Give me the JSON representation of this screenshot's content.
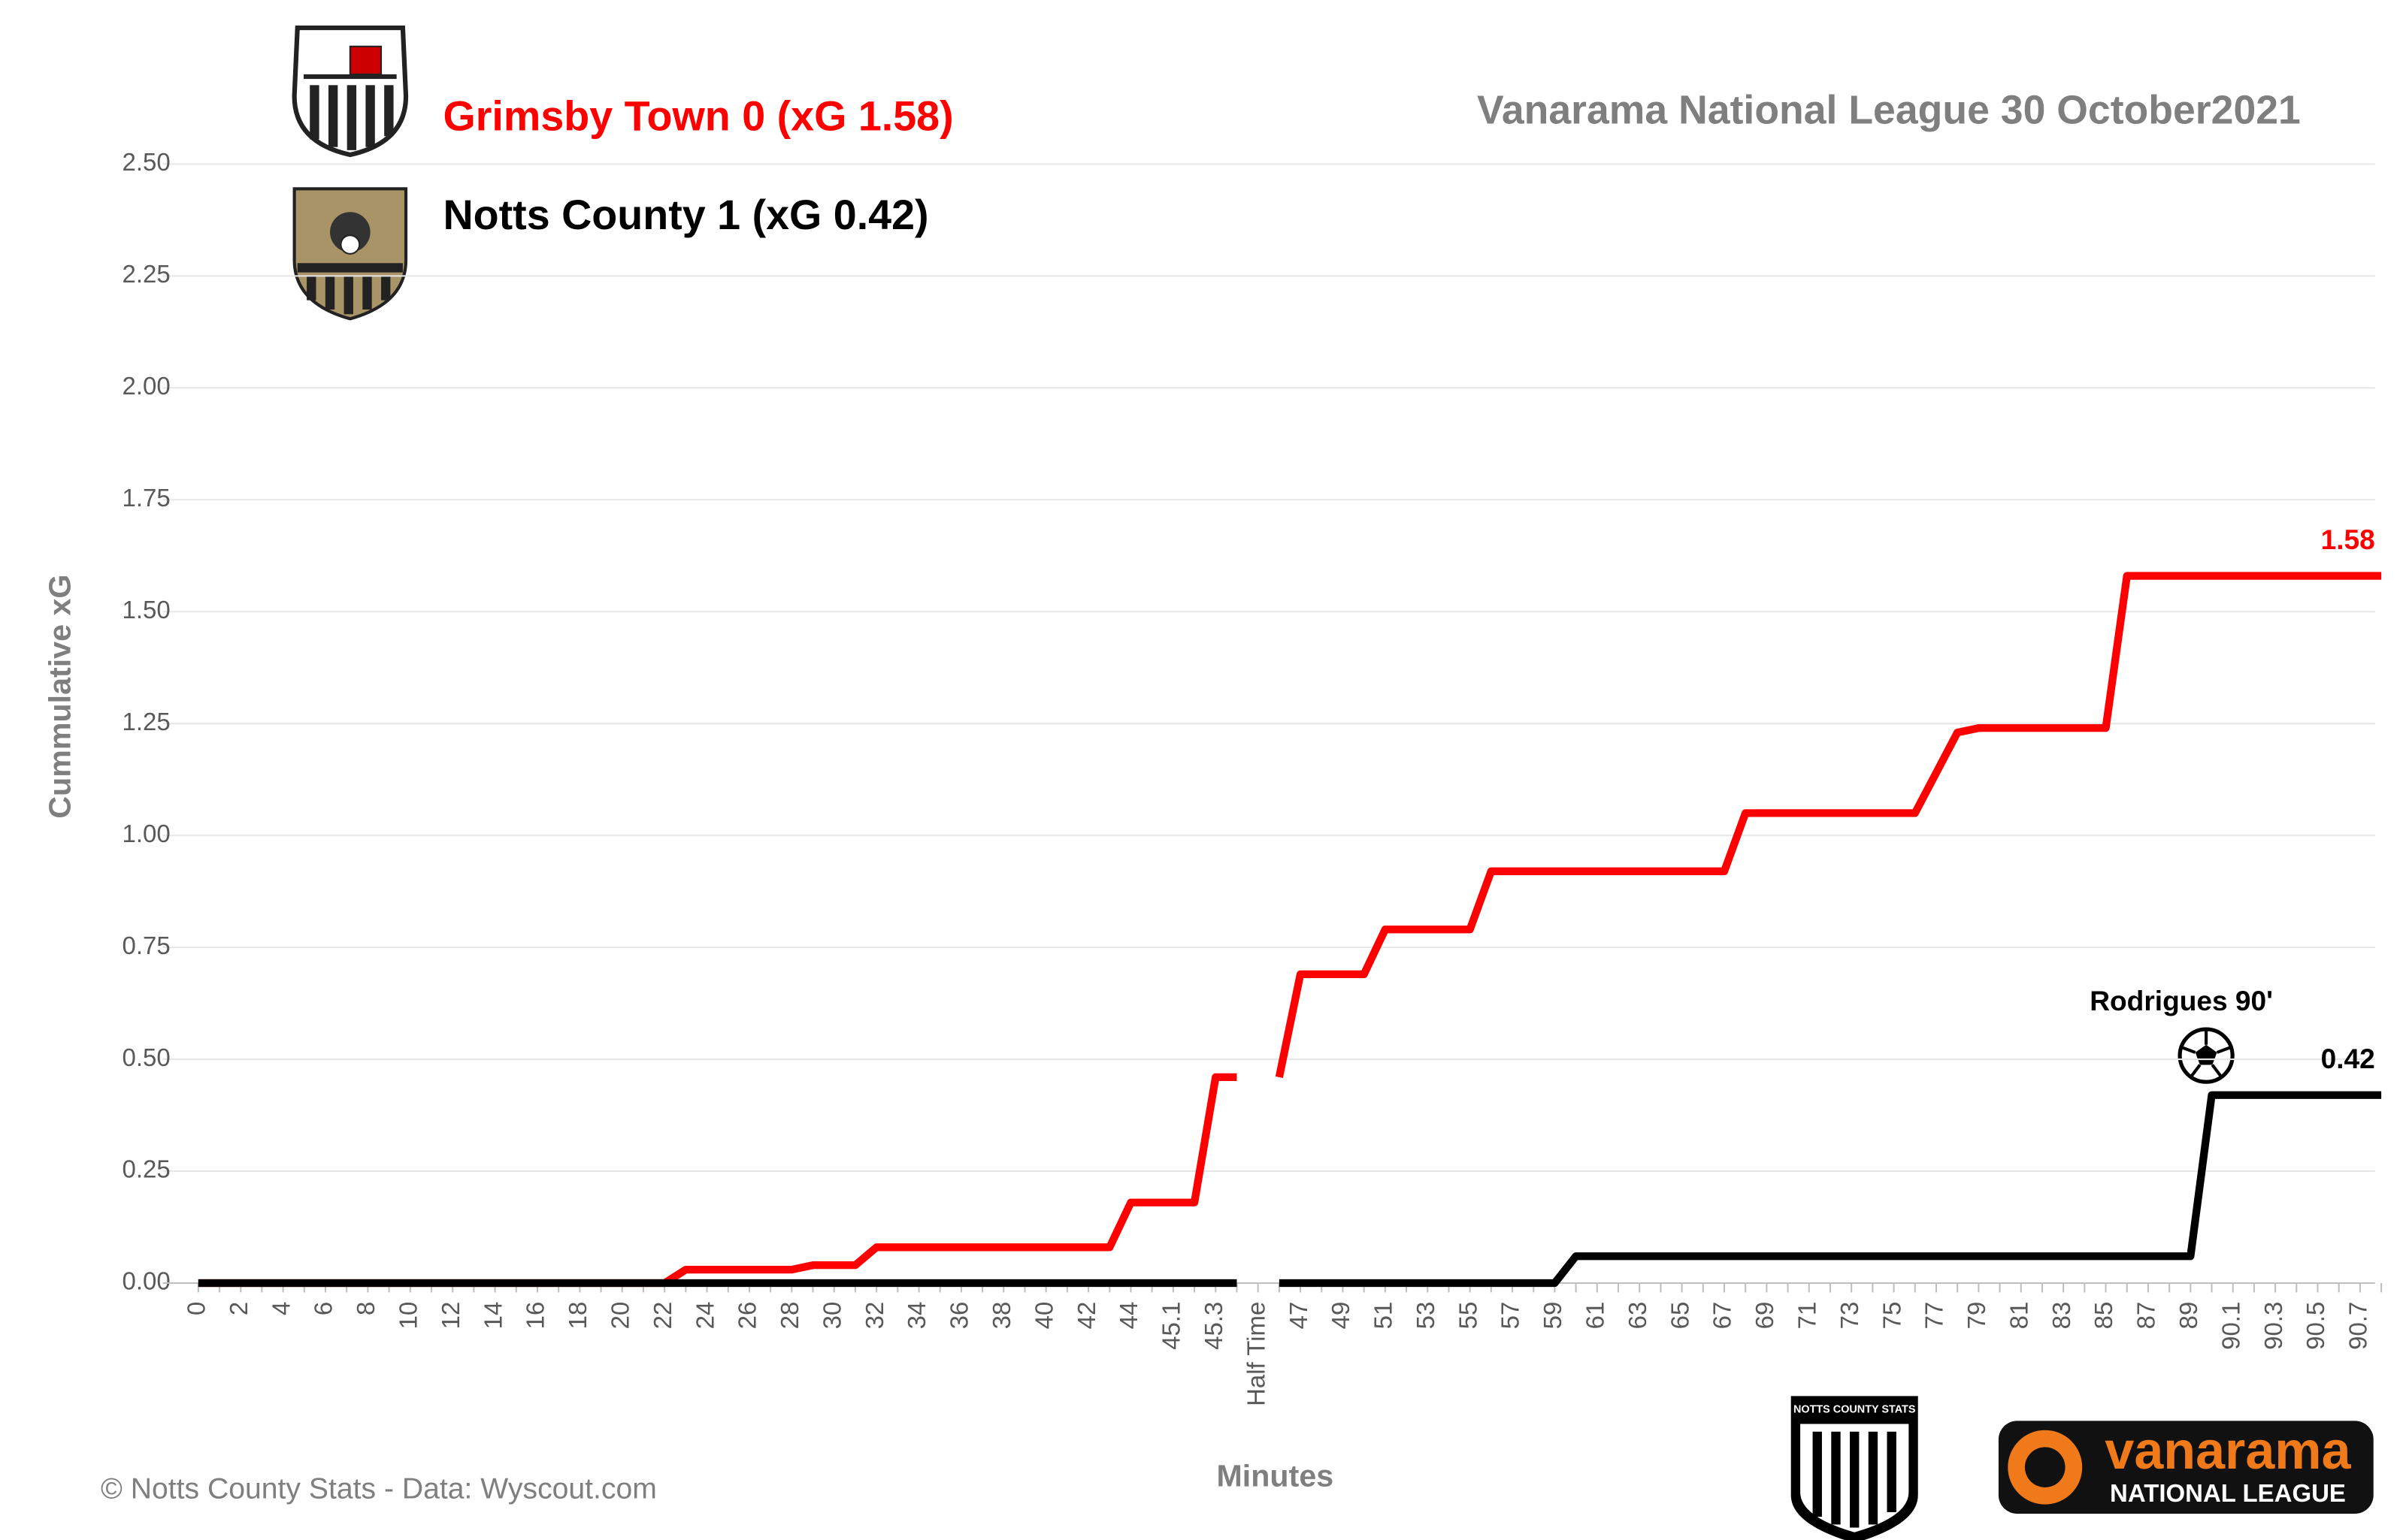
{
  "chart_data": {
    "type": "line",
    "title": "Vanarama National League  30 October2021",
    "xlabel": "Minutes",
    "ylabel": "Cummulative  xG",
    "annotation": "Rodrigues 90'",
    "footer": "© Notts County Stats - Data: Wyscout.com",
    "logo_texts": [
      "NOTTS COUNTY STATS",
      "vanarama",
      "NATIONAL LEAGUE"
    ],
    "categories": [
      "0",
      null,
      "2",
      null,
      "4",
      null,
      "6",
      null,
      "8",
      null,
      "10",
      null,
      "12",
      null,
      "14",
      null,
      "16",
      null,
      "18",
      null,
      "20",
      null,
      "22",
      null,
      "24",
      null,
      "26",
      null,
      "28",
      null,
      "30",
      null,
      "32",
      null,
      "34",
      null,
      "36",
      null,
      "38",
      null,
      "40",
      null,
      "42",
      null,
      "44",
      null,
      "45.1",
      null,
      "45.3",
      null,
      "Half Time",
      null,
      "47",
      null,
      "49",
      null,
      "51",
      null,
      "53",
      null,
      "55",
      null,
      "57",
      null,
      "59",
      null,
      "61",
      null,
      "63",
      null,
      "65",
      null,
      "67",
      null,
      "69",
      null,
      "71",
      null,
      "73",
      null,
      "75",
      null,
      "77",
      null,
      "79",
      null,
      "81",
      null,
      "83",
      null,
      "85",
      null,
      "87",
      null,
      "89",
      null,
      "90.1",
      null,
      "90.3",
      null,
      "90.5",
      null,
      "90.7",
      null
    ],
    "series": [
      {
        "name": "Grimsby Town 0 (xG 1.58)",
        "color": "#ff0000",
        "values": [
          0,
          0,
          0,
          0,
          0,
          0,
          0,
          0,
          0,
          0,
          0,
          0,
          0,
          0,
          0,
          0,
          0,
          0,
          0,
          0,
          0,
          0,
          0,
          0.03,
          0.03,
          0.03,
          0.03,
          0.03,
          0.03,
          0.04,
          0.04,
          0.04,
          0.08,
          0.08,
          0.08,
          0.08,
          0.08,
          0.08,
          0.08,
          0.08,
          0.08,
          0.08,
          0.08,
          0.08,
          0.18,
          0.18,
          0.18,
          0.18,
          0.46,
          0.46,
          null,
          0.46,
          0.69,
          0.69,
          0.69,
          0.69,
          0.79,
          0.79,
          0.79,
          0.79,
          0.79,
          0.92,
          0.92,
          0.92,
          0.92,
          0.92,
          0.92,
          0.92,
          0.92,
          0.92,
          0.92,
          0.92,
          0.92,
          1.05,
          1.05,
          1.05,
          1.05,
          1.05,
          1.05,
          1.05,
          1.05,
          1.05,
          1.14,
          1.23,
          1.24,
          1.24,
          1.24,
          1.24,
          1.24,
          1.24,
          1.24,
          1.58,
          1.58,
          1.58,
          1.58,
          1.58,
          1.58,
          1.58,
          1.58,
          1.58,
          1.58,
          1.58,
          1.58,
          1.58
        ]
      },
      {
        "name": "Notts County 1 (xG 0.42)",
        "color": "#000000",
        "values": [
          0,
          0,
          0,
          0,
          0,
          0,
          0,
          0,
          0,
          0,
          0,
          0,
          0,
          0,
          0,
          0,
          0,
          0,
          0,
          0,
          0,
          0,
          0,
          0,
          0,
          0,
          0,
          0,
          0,
          0,
          0,
          0,
          0,
          0,
          0,
          0,
          0,
          0,
          0,
          0,
          0,
          0,
          0,
          0,
          0,
          0,
          0,
          0,
          0,
          0,
          null,
          0,
          0,
          0,
          0,
          0,
          0,
          0,
          0,
          0,
          0,
          0,
          0,
          0,
          0,
          0.06,
          0.06,
          0.06,
          0.06,
          0.06,
          0.06,
          0.06,
          0.06,
          0.06,
          0.06,
          0.06,
          0.06,
          0.06,
          0.06,
          0.06,
          0.06,
          0.06,
          0.06,
          0.06,
          0.06,
          0.06,
          0.06,
          0.06,
          0.06,
          0.06,
          0.06,
          0.06,
          0.06,
          0.06,
          0.06,
          0.42,
          0.42,
          0.42,
          0.42,
          0.42,
          0.42,
          0.42,
          0.42,
          0.42
        ]
      }
    ],
    "ylim": [
      0,
      2.5
    ],
    "yticks": [
      {
        "value": 0,
        "label": "0.00"
      },
      {
        "value": 0.25,
        "label": "0.25"
      },
      {
        "value": 0.5,
        "label": "0.50"
      },
      {
        "value": 0.75,
        "label": "0.75"
      },
      {
        "value": 1,
        "label": "1.00"
      },
      {
        "value": 1.25,
        "label": "1.25"
      },
      {
        "value": 1.5,
        "label": "1.50"
      },
      {
        "value": 1.75,
        "label": "1.75"
      },
      {
        "value": 2,
        "label": "2.00"
      },
      {
        "value": 2.25,
        "label": "2.25"
      },
      {
        "value": 2.5,
        "label": "2.50"
      }
    ],
    "grid": true
  }
}
